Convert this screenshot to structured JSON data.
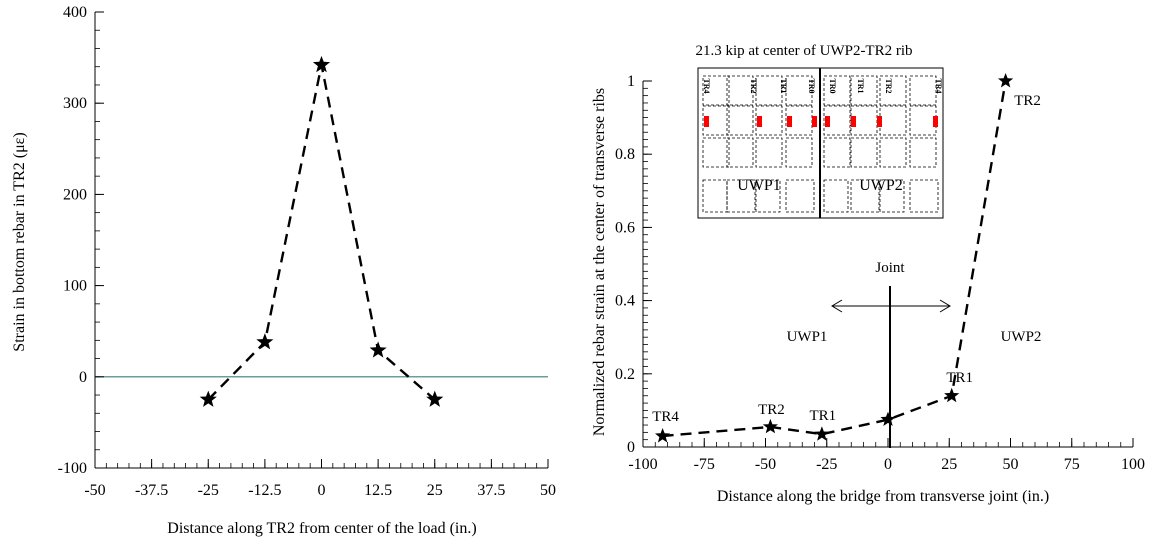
{
  "chart_data": [
    {
      "type": "line",
      "xlabel": "Distance along TR2 from center of the load (in.)",
      "ylabel": "Strain in bottom rebar in TR2 (με)",
      "xlim": [
        -50,
        50
      ],
      "ylim": [
        -100,
        400
      ],
      "xticks": [
        -50,
        -37.5,
        -25,
        -12.5,
        0,
        12.5,
        25,
        37.5,
        50
      ],
      "xtick_labels": [
        "-50",
        "-37.5",
        "-25",
        "-12.5",
        "0",
        "12.5",
        "25",
        "37.5",
        "50"
      ],
      "yticks": [
        -100,
        0,
        100,
        200,
        300,
        400
      ],
      "ytick_labels": [
        "-100",
        "0",
        "100",
        "200",
        "300",
        "400"
      ],
      "zero_line": true,
      "series": [
        {
          "x": [
            -25,
            -12.5,
            0,
            12.5,
            25
          ],
          "y": [
            -25,
            38,
            342,
            29,
            -25
          ],
          "marker": "star",
          "line": "dashed"
        }
      ]
    },
    {
      "type": "line",
      "xlabel": "Distance along the bridge from transverse joint (in.)",
      "ylabel": "Normalized rebar strain at the center of transverse ribs",
      "xlim": [
        -100,
        100
      ],
      "ylim": [
        0,
        1
      ],
      "xticks": [
        -100,
        -75,
        -50,
        -25,
        0,
        25,
        50,
        75,
        100
      ],
      "xtick_labels": [
        "-100",
        "-75",
        "-50",
        "-25",
        "0",
        "25",
        "50",
        "75",
        "100"
      ],
      "yticks": [
        0,
        0.2,
        0.4,
        0.6,
        0.8,
        1
      ],
      "ytick_labels": [
        "0",
        "0.2",
        "0.4",
        "0.6",
        "0.8",
        "1"
      ],
      "series": [
        {
          "x": [
            -92,
            -48,
            -27,
            0,
            26,
            48
          ],
          "y": [
            0.03,
            0.055,
            0.035,
            0.075,
            0.14,
            1.0
          ],
          "marker": "star",
          "line": "dashed",
          "point_labels": [
            "TR4",
            "TR2",
            "TR1",
            "",
            "TR1",
            "TR2"
          ]
        }
      ],
      "annotations": {
        "joint": "Joint",
        "left_side": "UWP1",
        "right_side": "UWP2",
        "inset_title": "21.3 kip at center of UWP2-TR2 rib",
        "inset_panel_left": "UWP1",
        "inset_panel_right": "UWP2",
        "inset_rib_labels": [
          "TR4",
          "TR2",
          "TR1",
          "TR0",
          "TR0",
          "TR1",
          "TR2",
          "TR4"
        ]
      }
    }
  ],
  "colors": {
    "zero_line": "#3a7d7d",
    "gauge": "#ff0000",
    "line": "#000000"
  }
}
